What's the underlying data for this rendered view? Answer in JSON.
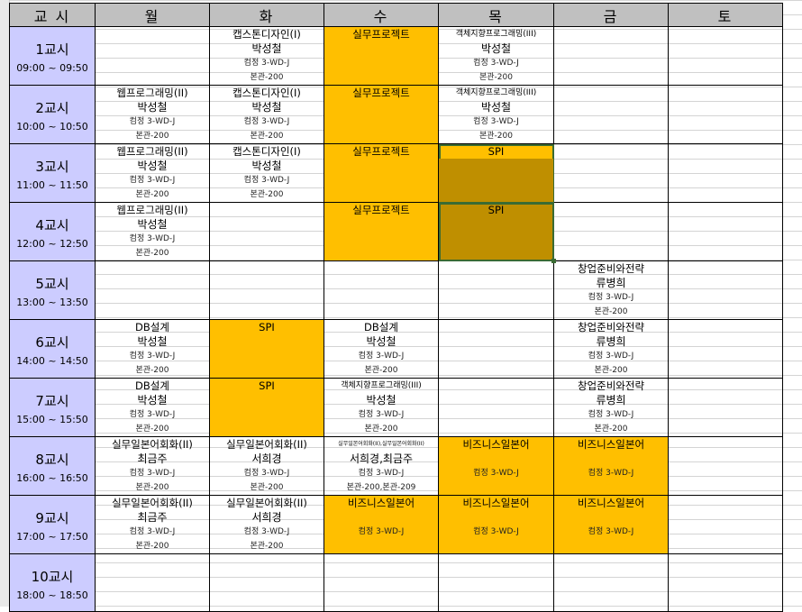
{
  "header": {
    "period": "교 시",
    "days": [
      "월",
      "화",
      "수",
      "목",
      "금",
      "토"
    ]
  },
  "colors": {
    "highlight": "#ffbf00",
    "dark_highlight": "#bf8f00",
    "period_bg": "#ccccff",
    "header_bg": "#c0c0c0"
  },
  "rows": [
    {
      "period": "1교시",
      "time": "09:00 ~ 09:50",
      "cells": [
        {},
        {
          "subject": "캡스톤디자인(I)",
          "prof": "박성철",
          "room1": "컴정 3-WD-J",
          "room2": "본관-200"
        },
        {
          "subject": "실무프로젝트",
          "style": "hl"
        },
        {
          "subject": "객체지향프로그래밍(III)",
          "small": true,
          "prof": "박성철",
          "room1": "컴정 3-WD-J",
          "room2": "본관-200"
        },
        {},
        {}
      ]
    },
    {
      "period": "2교시",
      "time": "10:00 ~ 10:50",
      "cells": [
        {
          "subject": "웹프로그래밍(II)",
          "prof": "박성철",
          "room1": "컴정 3-WD-J",
          "room2": "본관-200"
        },
        {
          "subject": "캡스톤디자인(I)",
          "prof": "박성철",
          "room1": "컴정 3-WD-J",
          "room2": "본관-200"
        },
        {
          "subject": "실무프로젝트",
          "style": "hl"
        },
        {
          "subject": "객체지향프로그래밍(III)",
          "small": true,
          "prof": "박성철",
          "room1": "컴정 3-WD-J",
          "room2": "본관-200"
        },
        {},
        {}
      ]
    },
    {
      "period": "3교시",
      "time": "11:00 ~ 11:50",
      "cells": [
        {
          "subject": "웹프로그래밍(II)",
          "prof": "박성철",
          "room1": "컴정 3-WD-J",
          "room2": "본관-200"
        },
        {
          "subject": "캡스톤디자인(I)",
          "prof": "박성철",
          "room1": "컴정 3-WD-J",
          "room2": "본관-200"
        },
        {
          "subject": "실무프로젝트",
          "style": "hl"
        },
        {
          "subject": "SPI",
          "style": "split",
          "selected": true
        },
        {},
        {}
      ]
    },
    {
      "period": "4교시",
      "time": "12:00 ~ 12:50",
      "cells": [
        {
          "subject": "웹프로그래밍(II)",
          "prof": "박성철",
          "room1": "컴정 3-WD-J",
          "room2": "본관-200"
        },
        {},
        {
          "subject": "실무프로젝트",
          "style": "hl"
        },
        {
          "subject": "SPI",
          "style": "dk",
          "selected": true
        },
        {},
        {}
      ]
    },
    {
      "period": "5교시",
      "time": "13:00 ~ 13:50",
      "cells": [
        {},
        {},
        {},
        {},
        {
          "subject": "창업준비와전략",
          "prof": "류병희",
          "room1": "컴정 3-WD-J",
          "room2": "본관-200"
        },
        {}
      ]
    },
    {
      "period": "6교시",
      "time": "14:00 ~ 14:50",
      "cells": [
        {
          "subject": "DB설계",
          "prof": "박성철",
          "room1": "컴정 3-WD-J",
          "room2": "본관-200"
        },
        {
          "subject": "SPI",
          "style": "hl"
        },
        {
          "subject": "DB설계",
          "prof": "박성철",
          "room1": "컴정 3-WD-J",
          "room2": "본관-200"
        },
        {},
        {
          "subject": "창업준비와전략",
          "prof": "류병희",
          "room1": "컴정 3-WD-J",
          "room2": "본관-200"
        },
        {}
      ]
    },
    {
      "period": "7교시",
      "time": "15:00 ~ 15:50",
      "cells": [
        {
          "subject": "DB설계",
          "prof": "박성철",
          "room1": "컴정 3-WD-J",
          "room2": "본관-200"
        },
        {
          "subject": "SPI",
          "style": "hl"
        },
        {
          "subject": "객체지향프로그래밍(III)",
          "small": true,
          "prof": "박성철",
          "room1": "컴정 3-WD-J",
          "room2": "본관-200"
        },
        {},
        {
          "subject": "창업준비와전략",
          "prof": "류병희",
          "room1": "컴정 3-WD-J",
          "room2": "본관-200"
        },
        {}
      ]
    },
    {
      "period": "8교시",
      "time": "16:00 ~ 16:50",
      "cells": [
        {
          "subject": "실무일본어회화(II)",
          "prof": "최금주",
          "room1": "컴정 3-WD-J",
          "room2": "본관-200"
        },
        {
          "subject": "실무일본어회화(II)",
          "prof": "서희경",
          "room1": "컴정 3-WD-J",
          "room2": "본관-200"
        },
        {
          "subject": "실무일본어회화(II),실무일본어회화(II)",
          "tiny": true,
          "prof": "서희경,최금주",
          "room1": "컴정 3-WD-J",
          "room2": "본관-200,본관-209"
        },
        {
          "subject": "비즈니스일본어",
          "style": "hl",
          "prof": "",
          "room1": "컴정 3-WD-J"
        },
        {
          "subject": "비즈니스일본어",
          "style": "hl",
          "prof": "",
          "room1": "컴정 3-WD-J"
        },
        {}
      ]
    },
    {
      "period": "9교시",
      "time": "17:00 ~ 17:50",
      "cells": [
        {
          "subject": "실무일본어회화(II)",
          "prof": "최금주",
          "room1": "컴정 3-WD-J",
          "room2": "본관-200"
        },
        {
          "subject": "실무일본어회화(II)",
          "prof": "서희경",
          "room1": "컴정 3-WD-J",
          "room2": "본관-200"
        },
        {
          "subject": "비즈니스일본어",
          "style": "hl",
          "prof": "",
          "room1": "컴정 3-WD-J"
        },
        {
          "subject": "비즈니스일본어",
          "style": "hl",
          "prof": "",
          "room1": "컴정 3-WD-J"
        },
        {
          "subject": "비즈니스일본어",
          "style": "hl",
          "prof": "",
          "room1": "컴정 3-WD-J"
        },
        {}
      ]
    },
    {
      "period": "10교시",
      "time": "18:00 ~ 18:50",
      "cells": [
        {},
        {},
        {},
        {},
        {},
        {}
      ]
    }
  ]
}
